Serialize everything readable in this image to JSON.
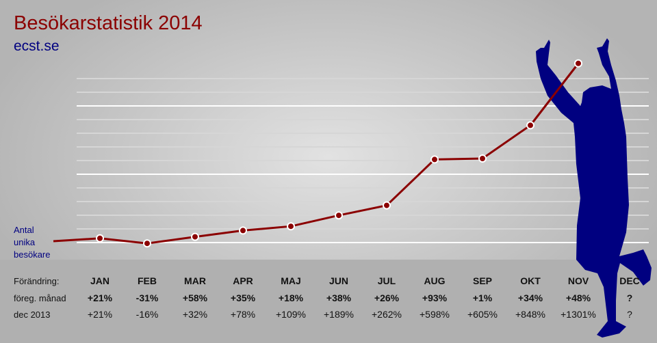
{
  "title": "Besökarstatistik 2014",
  "subtitle": "ecst.se",
  "colors": {
    "line": "#8b0000",
    "title": "#8b0000",
    "subtitle": "#000080",
    "silhouette": "#000080"
  },
  "chart_data": {
    "type": "line",
    "title": "Besökarstatistik 2014",
    "ylabel": "Antal unika besökare",
    "categories": [
      "JAN",
      "FEB",
      "MAR",
      "APR",
      "MAJ",
      "JUN",
      "JUL",
      "AUG",
      "SEP",
      "OKT",
      "NOV",
      "DEC"
    ],
    "baseline": "dec 2013",
    "values_change_vs_dec2013_pct": [
      21,
      -16,
      32,
      78,
      109,
      189,
      262,
      598,
      605,
      848,
      1301,
      null
    ],
    "grid": true
  },
  "table": {
    "row_labels": [
      "Förändring:",
      "föreg. månad",
      "dec 2013"
    ],
    "months": [
      "JAN",
      "FEB",
      "MAR",
      "APR",
      "MAJ",
      "JUN",
      "JUL",
      "AUG",
      "SEP",
      "OKT",
      "NOV",
      "DEC"
    ],
    "prev_month": [
      "+21%",
      "-31%",
      "+58%",
      "+35%",
      "+18%",
      "+38%",
      "+26%",
      "+93%",
      "+1%",
      "+34%",
      "+48%",
      "?"
    ],
    "vs_dec2013": [
      "+21%",
      "-16%",
      "+32%",
      "+78%",
      "+109%",
      "+189%",
      "+262%",
      "+598%",
      "+605%",
      "+848%",
      "+1301%",
      "?"
    ]
  },
  "silhouette_icon": "celebrating-person-silhouette"
}
